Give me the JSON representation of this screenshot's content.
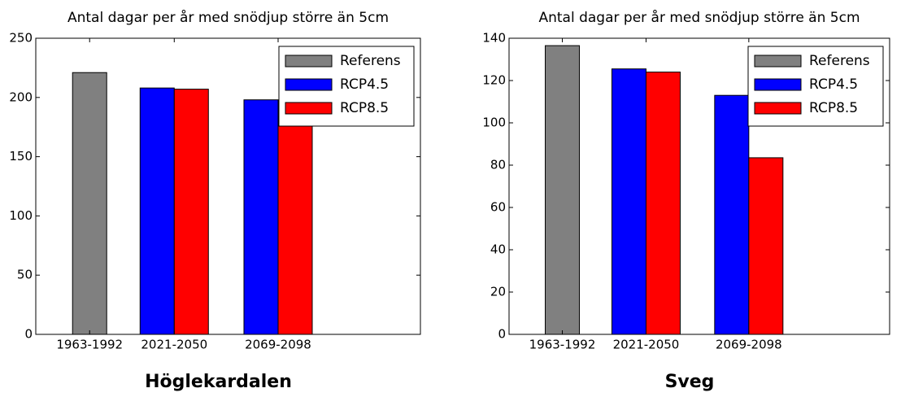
{
  "chart_data": [
    {
      "type": "bar",
      "title": "Antal dagar per år med snödjup större än 5cm",
      "caption": "Höglekardalen",
      "categories": [
        "1963-1992",
        "2021-2050",
        "2069-2098"
      ],
      "series": [
        {
          "name": "Referens",
          "color": "#808080",
          "values": [
            221,
            null,
            null
          ]
        },
        {
          "name": "RCP4.5",
          "color": "#0000ff",
          "values": [
            null,
            208,
            198
          ]
        },
        {
          "name": "RCP8.5",
          "color": "#ff0000",
          "values": [
            null,
            207,
            184
          ]
        }
      ],
      "ylim": [
        0,
        250
      ],
      "yticks": [
        0,
        50,
        100,
        150,
        200,
        250
      ],
      "legend": "upper right"
    },
    {
      "type": "bar",
      "title": "Antal dagar per år med snödjup större än 5cm",
      "caption": "Sveg",
      "categories": [
        "1963-1992",
        "2021-2050",
        "2069-2098"
      ],
      "series": [
        {
          "name": "Referens",
          "color": "#808080",
          "values": [
            136.5,
            null,
            null
          ]
        },
        {
          "name": "RCP4.5",
          "color": "#0000ff",
          "values": [
            null,
            125.5,
            113
          ]
        },
        {
          "name": "RCP8.5",
          "color": "#ff0000",
          "values": [
            null,
            124,
            83.5
          ]
        }
      ],
      "ylim": [
        0,
        140
      ],
      "yticks": [
        0,
        20,
        40,
        60,
        80,
        100,
        120,
        140
      ],
      "legend": "upper right"
    }
  ]
}
